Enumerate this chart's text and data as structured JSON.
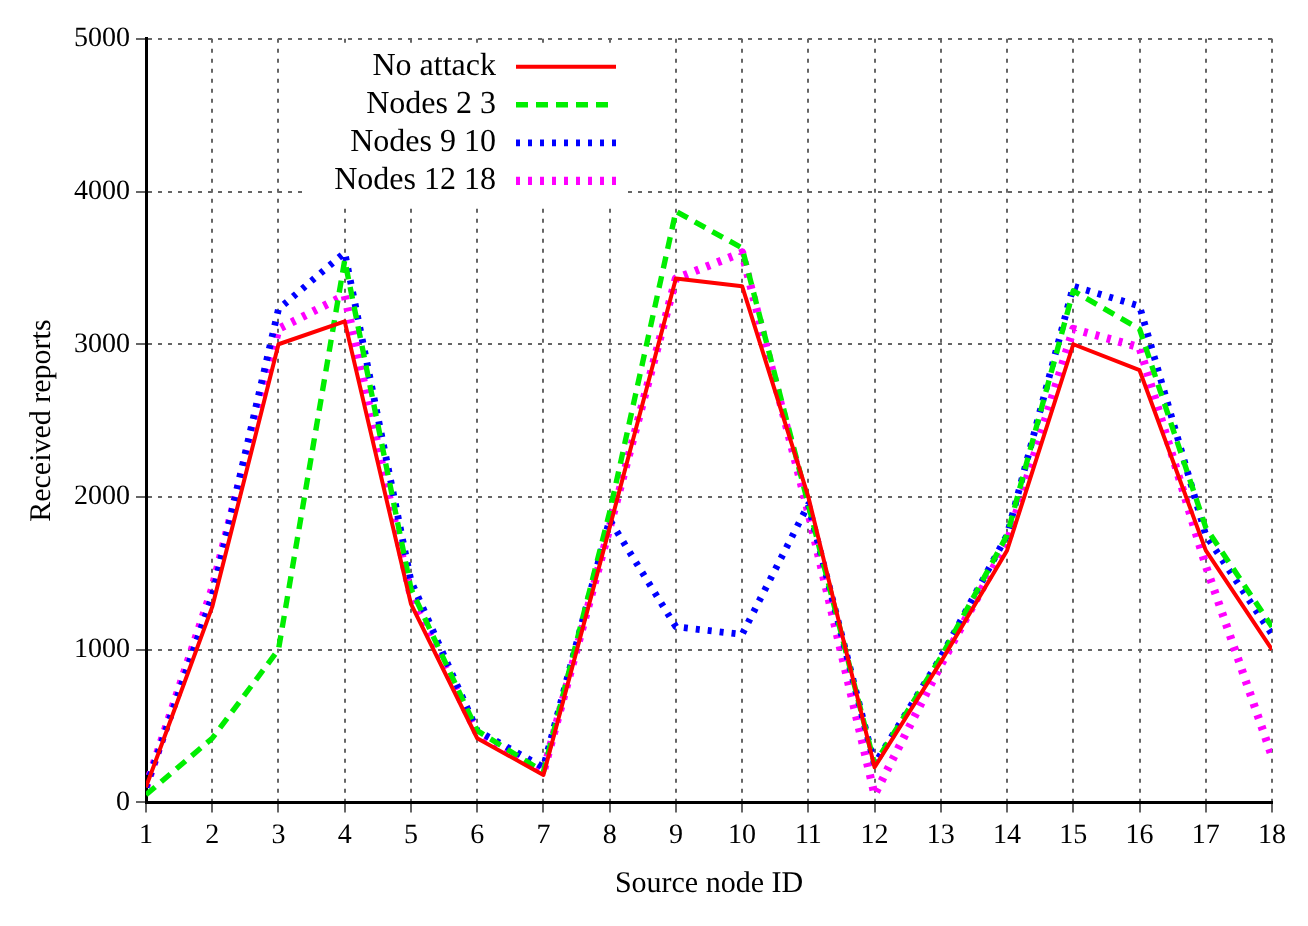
{
  "chart_data": {
    "type": "line",
    "xlabel": "Source node ID",
    "ylabel": "Received reports",
    "x": [
      1,
      2,
      3,
      4,
      5,
      6,
      7,
      8,
      9,
      10,
      11,
      12,
      13,
      14,
      15,
      16,
      17,
      18
    ],
    "xlim": [
      1,
      18
    ],
    "xticks": [
      1,
      2,
      3,
      4,
      5,
      6,
      7,
      8,
      9,
      10,
      11,
      12,
      13,
      14,
      15,
      16,
      17,
      18
    ],
    "ylim": [
      0,
      5000
    ],
    "yticks": [
      0,
      1000,
      2000,
      3000,
      4000,
      5000
    ],
    "grid": true,
    "legend": "top left",
    "marker": "none",
    "series": [
      {
        "name": "No attack",
        "color": "#ff0000",
        "line_style": "solid",
        "values": [
          100,
          1280,
          3000,
          3150,
          1300,
          420,
          180,
          1800,
          3430,
          3380,
          2000,
          230,
          920,
          1650,
          3000,
          2830,
          1650,
          1000
        ]
      },
      {
        "name": "Nodes 2 3",
        "color": "#00ee00",
        "line_style": "dashed",
        "values": [
          50,
          420,
          1000,
          3550,
          1400,
          470,
          200,
          1900,
          3870,
          3630,
          1950,
          250,
          950,
          1750,
          3350,
          3100,
          1800,
          1150
        ]
      },
      {
        "name": "Nodes 9 10",
        "color": "#0000ff",
        "line_style": "dotted",
        "values": [
          100,
          1350,
          3230,
          3600,
          1450,
          470,
          230,
          1850,
          1150,
          1100,
          1950,
          250,
          950,
          1750,
          3380,
          3250,
          1750,
          1100
        ]
      },
      {
        "name": "Nodes 12 18",
        "color": "#ff00ff",
        "line_style": "dotted",
        "values": [
          100,
          1400,
          3100,
          3320,
          1350,
          450,
          200,
          1800,
          3430,
          3600,
          1900,
          50,
          900,
          1700,
          3100,
          2980,
          1550,
          300
        ]
      }
    ]
  }
}
